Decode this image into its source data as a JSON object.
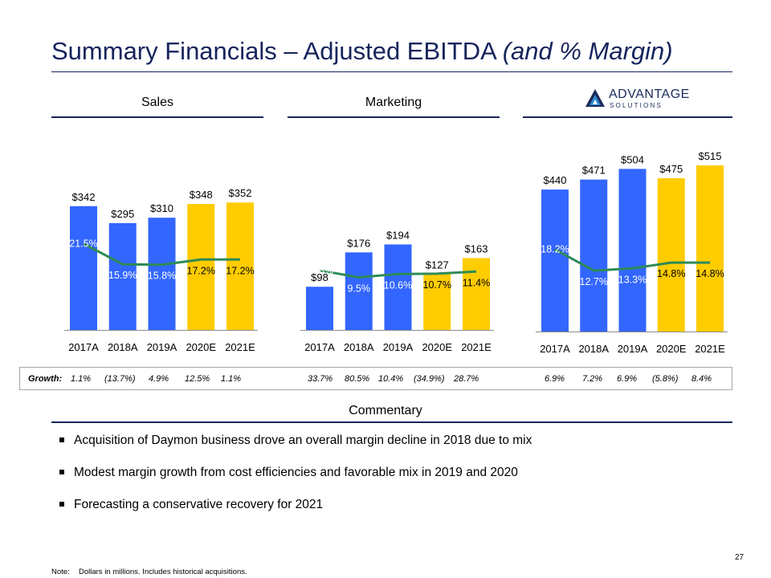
{
  "title": {
    "main": "Summary Financials – Adjusted EBITDA ",
    "italic": "(and % Margin)"
  },
  "panels": {
    "sales": "Sales",
    "marketing": "Marketing"
  },
  "logo": {
    "line1": "ADVANTAGE",
    "line2": "SOLUTIONS"
  },
  "colors": {
    "blue": "#3366ff",
    "yellow": "#ffcc00",
    "line": "#2e8b57",
    "navy": "#16245c"
  },
  "chart_data": [
    {
      "type": "bar",
      "name": "Sales",
      "categories": [
        "2017A",
        "2018A",
        "2019A",
        "2020E",
        "2021E"
      ],
      "values": [
        342,
        295,
        310,
        348,
        352
      ],
      "value_labels": [
        "$342",
        "$295",
        "$310",
        "$348",
        "$352"
      ],
      "kinds": [
        "actual",
        "actual",
        "actual",
        "estimate",
        "estimate"
      ],
      "margin": [
        21.5,
        15.9,
        15.8,
        17.2,
        17.2
      ],
      "margin_labels": [
        "21.5%",
        "15.9%",
        "15.8%",
        "17.2%",
        "17.2%"
      ]
    },
    {
      "type": "bar",
      "name": "Marketing",
      "categories": [
        "2017A",
        "2018A",
        "2019A",
        "2020E",
        "2021E"
      ],
      "values": [
        98,
        176,
        194,
        127,
        163
      ],
      "value_labels": [
        "$98",
        "$176",
        "$194",
        "$127",
        "$163"
      ],
      "kinds": [
        "actual",
        "actual",
        "actual",
        "estimate",
        "estimate"
      ],
      "margin": [
        11.8,
        9.5,
        10.6,
        10.7,
        11.4
      ],
      "margin_labels": [
        "11.8%",
        "9.5%",
        "10.6%",
        "10.7%",
        "11.4%"
      ]
    },
    {
      "type": "bar",
      "name": "Advantage Solutions",
      "categories": [
        "2017A",
        "2018A",
        "2019A",
        "2020E",
        "2021E"
      ],
      "values": [
        440,
        471,
        504,
        475,
        515
      ],
      "value_labels": [
        "$440",
        "$471",
        "$504",
        "$475",
        "$515"
      ],
      "kinds": [
        "actual",
        "actual",
        "actual",
        "estimate",
        "estimate"
      ],
      "margin": [
        18.2,
        12.7,
        13.3,
        14.8,
        14.8
      ],
      "margin_labels": [
        "18.2%",
        "12.7%",
        "13.3%",
        "14.8%",
        "14.8%"
      ]
    }
  ],
  "growth": {
    "label": "Growth:",
    "sales": [
      "1.1%",
      "(13.7%)",
      "4.9%",
      "12.5%",
      "1.1%"
    ],
    "marketing": [
      "33.7%",
      "80.5%",
      "10.4%",
      "(34.9%)",
      "28.7%"
    ],
    "total": [
      "6.9%",
      "7.2%",
      "6.9%",
      "(5.8%)",
      "8.4%"
    ]
  },
  "commentary": {
    "heading": "Commentary",
    "bullets": [
      "Acquisition of Daymon business drove an overall margin decline in 2018 due to mix",
      "Modest margin growth from cost efficiencies and favorable mix in 2019 and 2020",
      "Forecasting a conservative recovery for 2021"
    ]
  },
  "page_number": "27",
  "note": {
    "label": "Note:",
    "text": "Dollars in millions. Includes historical acquisitions."
  }
}
